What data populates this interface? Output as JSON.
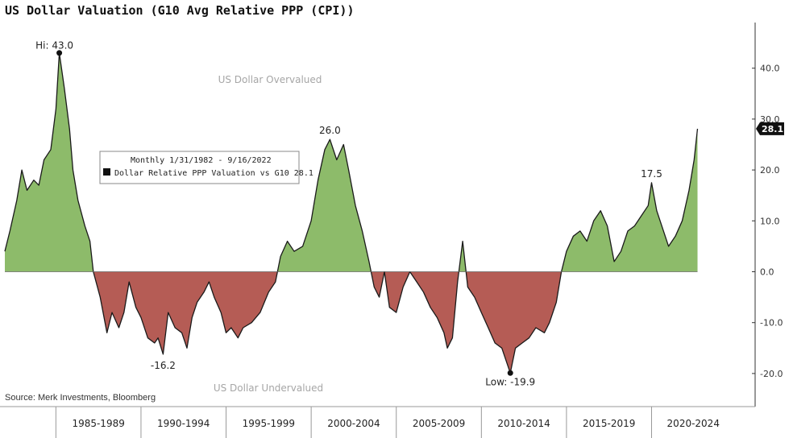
{
  "title": "US Dollar Valuation (G10 Avg Relative PPP (CPI))",
  "source": "Source: Merk Investments, Bloomberg",
  "colors": {
    "positive_fill": "#8dbb6a",
    "negative_fill": "#b55c55",
    "line": "#1a1a1a"
  },
  "chart_data": {
    "type": "area",
    "x_unit": "year",
    "y_unit": "%",
    "categories": [
      "1985-1989",
      "1990-1994",
      "1995-1999",
      "2000-2004",
      "2005-2009",
      "2010-2014",
      "2015-2019",
      "2020-2024"
    ],
    "y_ticks": [
      "40.0",
      "30.0",
      "20.0",
      "10.0",
      "0.0",
      "-10.0",
      "-20.0"
    ],
    "ylim": [
      -24,
      49
    ],
    "xlim": [
      1982.0,
      2024.9
    ],
    "zone_labels": {
      "over": "US Dollar Overvalued",
      "under": "US Dollar Undervalued"
    },
    "legend": {
      "line1": "Monthly 1/31/1982 - 9/16/2022",
      "series": "Dollar Relative PPP Valuation vs G10",
      "last": "28.1"
    },
    "last_value_label": "28.1",
    "annotations": [
      {
        "text": "Hi: 43.0",
        "x": 1985.2,
        "y": 43.0,
        "dot": true
      },
      {
        "text": "26.0",
        "x": 2001.1,
        "y": 26.0,
        "dot": false
      },
      {
        "text": "-16.2",
        "x": 1991.3,
        "y": -16.2,
        "dot": false
      },
      {
        "text": "Low: -19.9",
        "x": 2011.7,
        "y": -19.9,
        "dot": true
      },
      {
        "text": "17.5",
        "x": 2020.0,
        "y": 17.5,
        "dot": false
      }
    ],
    "series": [
      {
        "name": "Dollar Relative PPP Valuation vs G10",
        "points": [
          [
            1982.0,
            4
          ],
          [
            1982.3,
            8
          ],
          [
            1982.7,
            14
          ],
          [
            1983.0,
            20
          ],
          [
            1983.3,
            16
          ],
          [
            1983.7,
            18
          ],
          [
            1984.0,
            17
          ],
          [
            1984.3,
            22
          ],
          [
            1984.7,
            24
          ],
          [
            1985.0,
            32
          ],
          [
            1985.2,
            43.0
          ],
          [
            1985.5,
            36
          ],
          [
            1985.8,
            28
          ],
          [
            1986.0,
            20
          ],
          [
            1986.3,
            14
          ],
          [
            1986.7,
            9
          ],
          [
            1987.0,
            6
          ],
          [
            1987.2,
            0
          ],
          [
            1987.6,
            -5
          ],
          [
            1988.0,
            -12
          ],
          [
            1988.3,
            -8
          ],
          [
            1988.7,
            -11
          ],
          [
            1989.0,
            -8
          ],
          [
            1989.3,
            -2
          ],
          [
            1989.7,
            -7
          ],
          [
            1990.0,
            -9
          ],
          [
            1990.4,
            -13
          ],
          [
            1990.8,
            -14
          ],
          [
            1991.0,
            -13
          ],
          [
            1991.3,
            -16.2
          ],
          [
            1991.6,
            -8
          ],
          [
            1992.0,
            -11
          ],
          [
            1992.4,
            -12
          ],
          [
            1992.7,
            -15
          ],
          [
            1993.0,
            -9
          ],
          [
            1993.3,
            -6
          ],
          [
            1993.7,
            -4
          ],
          [
            1994.0,
            -2
          ],
          [
            1994.3,
            -5
          ],
          [
            1994.7,
            -8
          ],
          [
            1995.0,
            -12
          ],
          [
            1995.3,
            -11
          ],
          [
            1995.7,
            -13
          ],
          [
            1996.0,
            -11
          ],
          [
            1996.5,
            -10
          ],
          [
            1997.0,
            -8
          ],
          [
            1997.5,
            -4
          ],
          [
            1997.9,
            -2
          ],
          [
            1998.2,
            3
          ],
          [
            1998.6,
            6
          ],
          [
            1999.0,
            4
          ],
          [
            1999.5,
            5
          ],
          [
            2000.0,
            10
          ],
          [
            2000.4,
            18
          ],
          [
            2000.8,
            24
          ],
          [
            2001.1,
            26.0
          ],
          [
            2001.5,
            22
          ],
          [
            2001.9,
            25
          ],
          [
            2002.2,
            20
          ],
          [
            2002.6,
            13
          ],
          [
            2003.0,
            8
          ],
          [
            2003.4,
            2
          ],
          [
            2003.7,
            -3
          ],
          [
            2004.0,
            -5
          ],
          [
            2004.3,
            0
          ],
          [
            2004.6,
            -7
          ],
          [
            2005.0,
            -8
          ],
          [
            2005.4,
            -3
          ],
          [
            2005.8,
            0
          ],
          [
            2006.2,
            -2
          ],
          [
            2006.6,
            -4
          ],
          [
            2007.0,
            -7
          ],
          [
            2007.4,
            -9
          ],
          [
            2007.8,
            -12
          ],
          [
            2008.0,
            -15
          ],
          [
            2008.3,
            -13
          ],
          [
            2008.6,
            -2
          ],
          [
            2008.9,
            6
          ],
          [
            2009.2,
            -3
          ],
          [
            2009.6,
            -5
          ],
          [
            2010.0,
            -8
          ],
          [
            2010.4,
            -11
          ],
          [
            2010.8,
            -14
          ],
          [
            2011.2,
            -15
          ],
          [
            2011.7,
            -19.9
          ],
          [
            2012.0,
            -15
          ],
          [
            2012.4,
            -14
          ],
          [
            2012.8,
            -13
          ],
          [
            2013.2,
            -11
          ],
          [
            2013.7,
            -12
          ],
          [
            2014.0,
            -10
          ],
          [
            2014.4,
            -6
          ],
          [
            2014.7,
            0
          ],
          [
            2015.0,
            4
          ],
          [
            2015.4,
            7
          ],
          [
            2015.8,
            8
          ],
          [
            2016.2,
            6
          ],
          [
            2016.6,
            10
          ],
          [
            2017.0,
            12
          ],
          [
            2017.4,
            9
          ],
          [
            2017.8,
            2
          ],
          [
            2018.2,
            4
          ],
          [
            2018.6,
            8
          ],
          [
            2019.0,
            9
          ],
          [
            2019.4,
            11
          ],
          [
            2019.8,
            13
          ],
          [
            2020.0,
            17.5
          ],
          [
            2020.3,
            12
          ],
          [
            2020.7,
            8
          ],
          [
            2021.0,
            5
          ],
          [
            2021.4,
            7
          ],
          [
            2021.8,
            10
          ],
          [
            2022.2,
            16
          ],
          [
            2022.5,
            22
          ],
          [
            2022.7,
            28.1
          ]
        ]
      }
    ]
  }
}
